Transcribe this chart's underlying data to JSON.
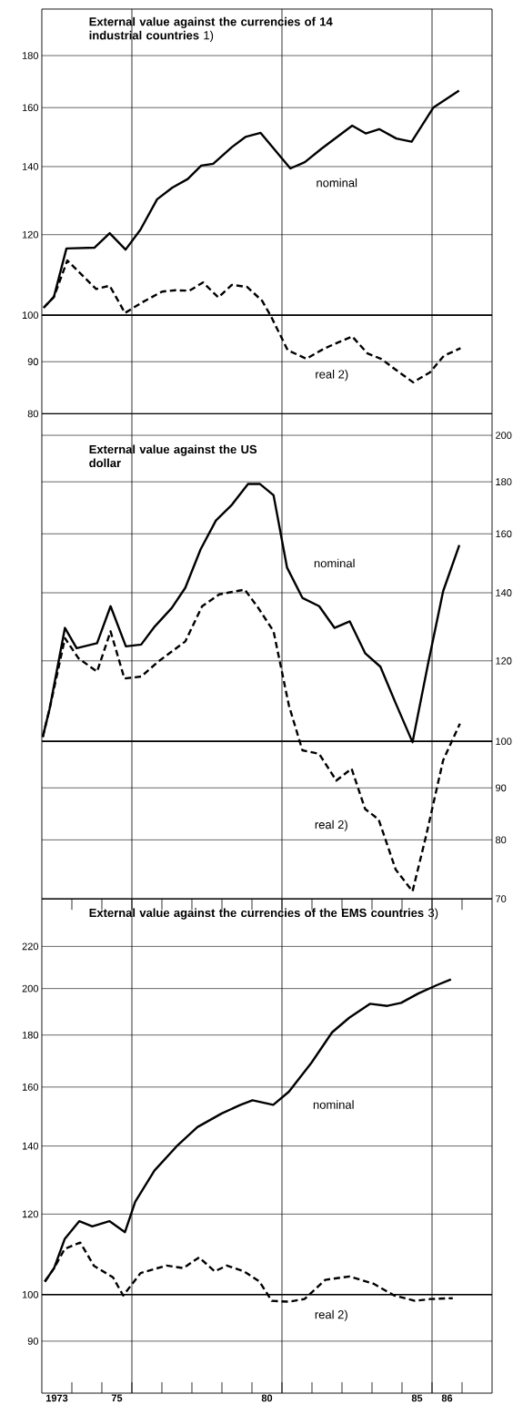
{
  "chart_data": [
    {
      "type": "line",
      "title": "**External value against the currencies of 14 industrial countries** 1)",
      "log": "y",
      "grid": "y",
      "legend": false,
      "marker": "none",
      "tick_labels": "y",
      "xlim": [
        1972.5,
        1987.5
      ],
      "ylim": [
        80,
        200
      ],
      "yticks": [
        80,
        90,
        100,
        120,
        140,
        160,
        180
      ],
      "ref_lines": [
        {
          "axis": "x",
          "value": 1975.5
        },
        {
          "axis": "x",
          "value": 1980.5
        },
        {
          "axis": "x",
          "value": 1985.5
        },
        {
          "axis": "y",
          "value": 100
        }
      ],
      "series": [
        {
          "name": "nominal",
          "color": "#000000",
          "line_style": "solid",
          "x": [
            1972.56,
            1972.9,
            1973.32,
            1974.25,
            1974.76,
            1975.29,
            1975.78,
            1976.34,
            1976.85,
            1977.36,
            1977.81,
            1978.21,
            1978.83,
            1979.28,
            1979.79,
            1980.78,
            1981.26,
            1981.82,
            1982.84,
            1983.29,
            1983.74,
            1984.31,
            1984.82,
            1985.55,
            1986.4
          ],
          "values": [
            101.7,
            104.2,
            116.3,
            116.5,
            120.4,
            116,
            121.3,
            130,
            133.5,
            136.1,
            140.3,
            140.9,
            146.3,
            149.7,
            151.1,
            139.4,
            141.4,
            145.8,
            153.6,
            150.9,
            152.4,
            149.2,
            148.1,
            160.1,
            166.3
          ]
        },
        {
          "name": "real 2)",
          "color": "#000000",
          "line_style": "dashed",
          "x": [
            1972.56,
            1972.9,
            1973.35,
            1974.31,
            1974.76,
            1975.27,
            1975.83,
            1976.51,
            1976.96,
            1977.42,
            1977.87,
            1978.38,
            1978.83,
            1979.34,
            1979.84,
            1980.13,
            1980.69,
            1981.31,
            1981.93,
            1982.84,
            1983.35,
            1983.8,
            1984.31,
            1984.87,
            1985.44,
            1985.89,
            1986.45
          ],
          "values": [
            101.7,
            104.2,
            113.2,
            106.1,
            106.9,
            100.5,
            102.9,
            105.5,
            105.8,
            105.7,
            107.7,
            104.1,
            107.1,
            106.6,
            103.3,
            99.8,
            92.4,
            90.6,
            92.8,
            95.3,
            91.7,
            90.6,
            88.3,
            85.9,
            87.9,
            91.2,
            92.8
          ]
        }
      ]
    },
    {
      "type": "line",
      "title": "**External value against the US dollar**",
      "log": "y2",
      "grid": "y",
      "legend": false,
      "marker": "none",
      "tick_labels": "y",
      "xlim": [
        1972.5,
        1987.5
      ],
      "y2lim": [
        70,
        210
      ],
      "y2ticks": [
        70,
        80,
        90,
        100,
        120,
        140,
        160,
        180,
        200
      ],
      "ref_lines": [
        {
          "axis": "x",
          "value": 1975.5
        },
        {
          "axis": "x",
          "value": 1980.5
        },
        {
          "axis": "x",
          "value": 1985.5
        },
        {
          "axis": "y2",
          "value": 100
        }
      ],
      "series": [
        {
          "name": "nominal",
          "color": "#000000",
          "line_style": "solid",
          "axis": "y2",
          "x": [
            1972.53,
            1972.76,
            1973.27,
            1973.66,
            1974.34,
            1974.79,
            1975.3,
            1975.81,
            1976.26,
            1976.83,
            1977.28,
            1977.79,
            1978.3,
            1978.81,
            1979.37,
            1979.77,
            1980.22,
            1980.67,
            1981.18,
            1981.74,
            1982.25,
            1982.76,
            1983.27,
            1983.78,
            1984.29,
            1984.85,
            1985.36,
            1985.87,
            1986.41
          ],
          "values": [
            101,
            107.7,
            129.3,
            123.5,
            124.9,
            135.8,
            124,
            124.5,
            129.7,
            135.3,
            141.6,
            154.5,
            164.9,
            170.6,
            179.1,
            179.1,
            174.6,
            148.2,
            138.4,
            135.8,
            129.3,
            131.2,
            122.1,
            118.4,
            109,
            99.8,
            118.9,
            140.5,
            156
          ]
        },
        {
          "name": "real 2)",
          "color": "#000000",
          "line_style": "dashed",
          "axis": "y2",
          "x": [
            1972.53,
            1972.76,
            1973.27,
            1973.72,
            1974.34,
            1974.79,
            1975.25,
            1975.81,
            1976.38,
            1977.28,
            1977.84,
            1978.41,
            1979.26,
            1979.71,
            1980.22,
            1980.73,
            1981.18,
            1981.74,
            1982.31,
            1982.82,
            1983.27,
            1983.72,
            1984.29,
            1984.85,
            1985.3,
            1985.87,
            1986.43
          ],
          "values": [
            101,
            107.7,
            126.3,
            120.7,
            117.1,
            128.3,
            115.3,
            115.8,
            119.8,
            125.4,
            135.8,
            139.5,
            141,
            135.3,
            128.3,
            108.5,
            98,
            97.2,
            91.5,
            94,
            85.8,
            83.8,
            74.8,
            71.2,
            80.7,
            95.8,
            104.1
          ]
        }
      ]
    },
    {
      "type": "line",
      "title": "**External value against the currencies of the EMS countries** 3)",
      "log": "y",
      "grid": "y",
      "legend": false,
      "marker": "none",
      "xlim": [
        1972.5,
        1987.5
      ],
      "ylim": [
        80,
        245
      ],
      "yticks": [
        90,
        100,
        120,
        140,
        160,
        180,
        200,
        220
      ],
      "xticks": [
        {
          "value": 1973,
          "label": "1973"
        },
        {
          "value": 1975,
          "label": "75"
        },
        {
          "value": 1980,
          "label": "80"
        },
        {
          "value": 1985,
          "label": "85"
        },
        {
          "value": 1986,
          "label": "86"
        },
        {
          "value": 1973.5,
          "label": null
        },
        {
          "value": 1974.5,
          "label": null
        },
        {
          "value": 1975.5,
          "label": null
        },
        {
          "value": 1976.5,
          "label": null
        },
        {
          "value": 1977.5,
          "label": null
        },
        {
          "value": 1978.5,
          "label": null
        },
        {
          "value": 1979.5,
          "label": null
        },
        {
          "value": 1980.5,
          "label": null
        },
        {
          "value": 1981.5,
          "label": null
        },
        {
          "value": 1982.5,
          "label": null
        },
        {
          "value": 1983.5,
          "label": null
        },
        {
          "value": 1984.5,
          "label": null
        },
        {
          "value": 1985.5,
          "label": null
        },
        {
          "value": 1986.5,
          "label": null
        }
      ],
      "ref_lines": [
        {
          "axis": "x",
          "value": 1975.5
        },
        {
          "axis": "x",
          "value": 1980.5
        },
        {
          "axis": "x",
          "value": 1985.5
        },
        {
          "axis": "y",
          "value": 100
        }
      ],
      "series": [
        {
          "name": "nominal",
          "color": "#000000",
          "line_style": "solid",
          "x": [
            1972.6,
            1972.91,
            1973.26,
            1973.75,
            1974.18,
            1974.75,
            1975.27,
            1975.61,
            1976.25,
            1976.99,
            1977.68,
            1978.49,
            1979.12,
            1979.52,
            1980.21,
            1980.73,
            1981.48,
            1982.17,
            1982.74,
            1983.43,
            1984.01,
            1984.47,
            1985.04,
            1985.67,
            1986.13
          ],
          "values": [
            103,
            106.2,
            113.4,
            118.1,
            116.7,
            118.1,
            115.2,
            123.4,
            132.4,
            139.9,
            146.1,
            150.7,
            153.7,
            155.3,
            153.7,
            158.3,
            169,
            181.1,
            187.2,
            193.2,
            192.3,
            193.6,
            197.8,
            201.6,
            204.2
          ]
        },
        {
          "name": "real 2)",
          "color": "#000000",
          "line_style": "dashed",
          "x": [
            1972.6,
            1972.91,
            1973.26,
            1973.78,
            1974.24,
            1974.87,
            1975.21,
            1975.79,
            1976.65,
            1977.22,
            1977.74,
            1978.26,
            1978.66,
            1979.24,
            1979.75,
            1980.16,
            1980.73,
            1981.25,
            1981.94,
            1982.74,
            1983.55,
            1984.24,
            1984.93,
            1985.44,
            1986.19
          ],
          "values": [
            103,
            106.2,
            110.9,
            112.5,
            106.7,
            104,
            99.8,
            105,
            106.8,
            106.2,
            108.8,
            105.4,
            106.8,
            105.4,
            103,
            98.6,
            98.4,
            99,
            103.4,
            104.2,
            102.5,
            99.8,
            98.6,
            99,
            99.2
          ]
        }
      ]
    }
  ]
}
